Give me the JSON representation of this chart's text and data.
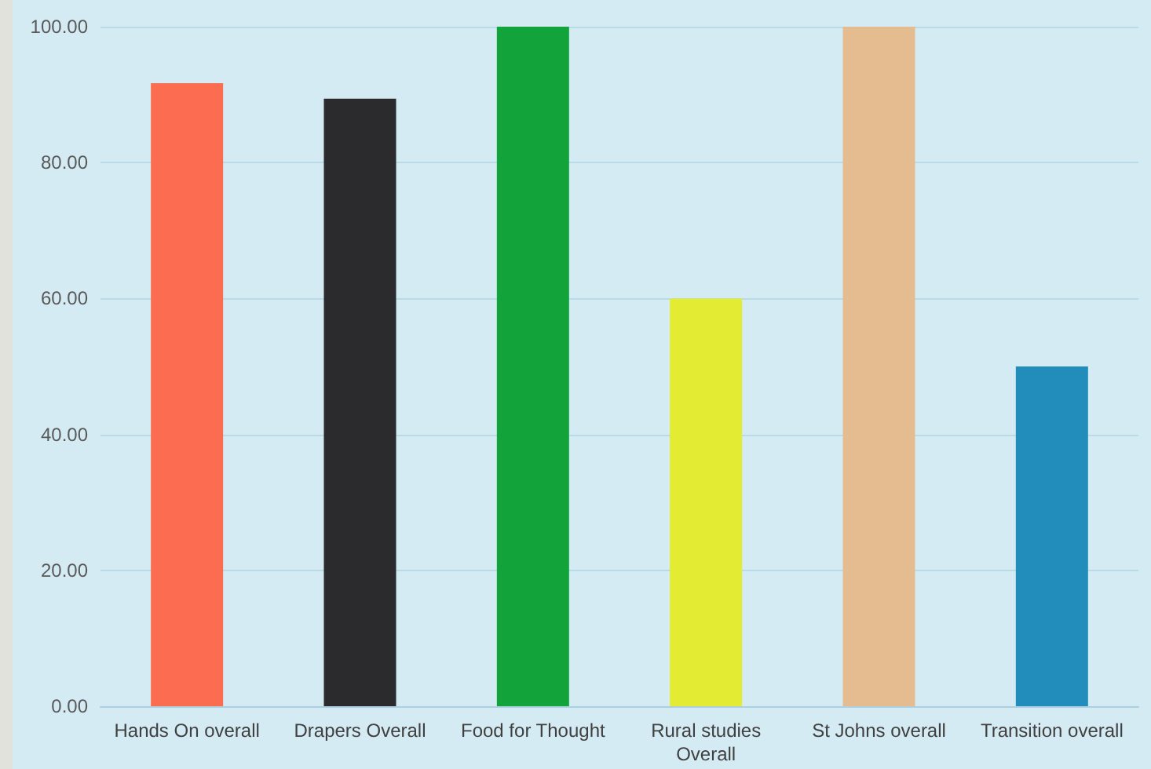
{
  "chart_data": {
    "type": "bar",
    "categories": [
      "Hands On overall",
      "Drapers Overall",
      "Food for Thought",
      "Rural studies\nOverall",
      "St Johns overall",
      "Transition overall"
    ],
    "values": [
      91.7,
      89.4,
      100,
      60,
      100,
      50
    ],
    "colors": [
      "#fb6c50",
      "#2b2a2d",
      "#12a43a",
      "#e3eb33",
      "#e4bc90",
      "#228dba"
    ],
    "ylim": [
      0,
      100
    ],
    "yticks": [
      {
        "value": 0,
        "label": "0.00"
      },
      {
        "value": 20,
        "label": "20.00"
      },
      {
        "value": 40,
        "label": "40.00"
      },
      {
        "value": 60,
        "label": "60.00"
      },
      {
        "value": 80,
        "label": "80.00"
      },
      {
        "value": 100,
        "label": "100.00"
      }
    ],
    "grid": "y"
  }
}
